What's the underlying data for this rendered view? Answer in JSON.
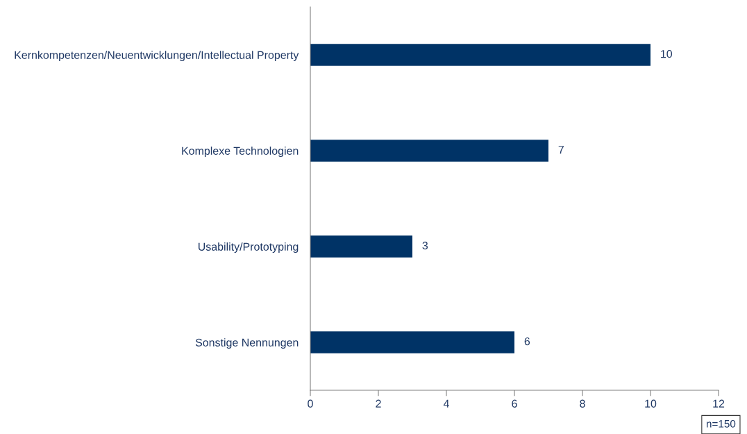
{
  "chart_data": {
    "type": "bar",
    "orientation": "horizontal",
    "categories": [
      "Kernkompetenzen/Neuentwicklungen/Intellectual Property",
      "Komplexe Technologien",
      "Usability/Prototyping",
      "Sonstige Nennungen"
    ],
    "values": [
      10,
      7,
      3,
      6
    ],
    "color": "#003366",
    "xlim": [
      0,
      12
    ],
    "xticks": [
      0,
      2,
      4,
      6,
      8,
      10,
      12
    ],
    "data_labels": true,
    "grid": false,
    "legend": false,
    "annotations": [
      "n=150"
    ]
  }
}
